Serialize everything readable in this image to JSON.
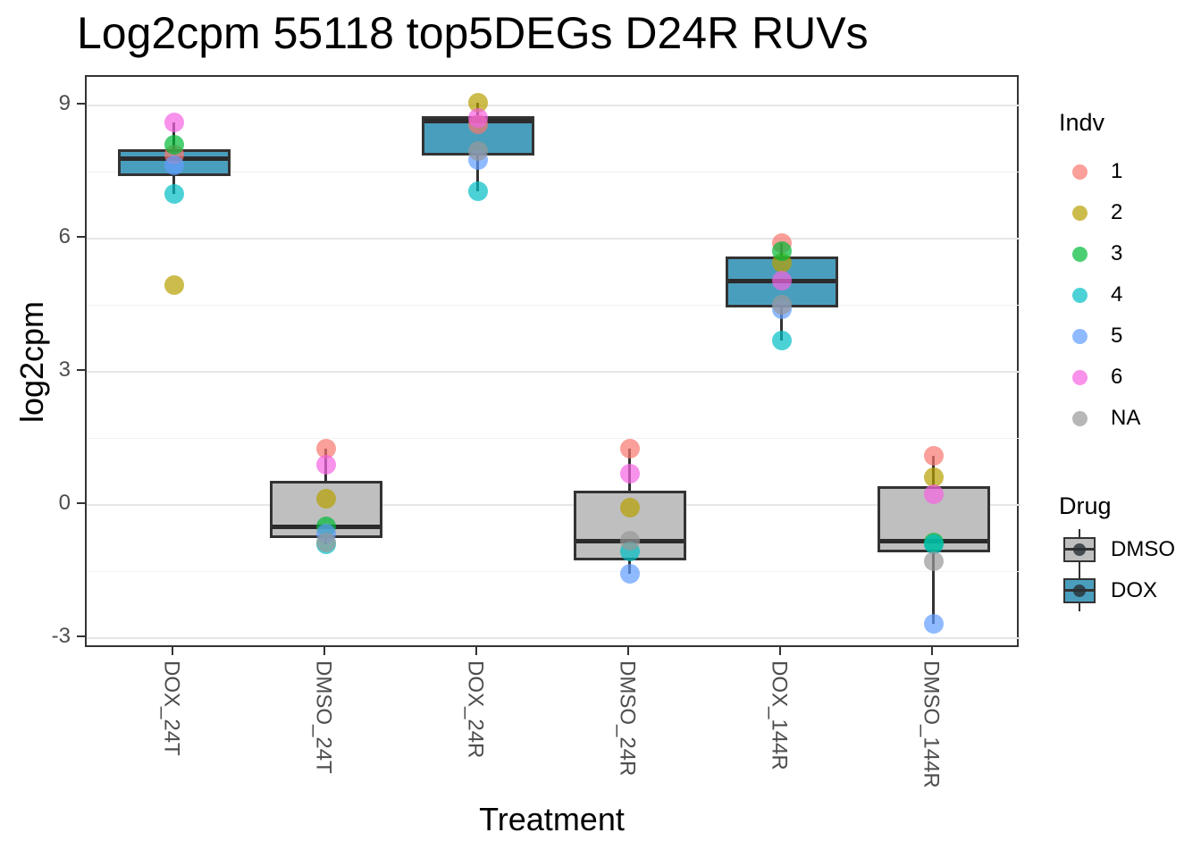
{
  "chart_data": {
    "type": "boxplot",
    "title": "Log2cpm 55118 top5DEGs D24R RUVs",
    "xlabel": "Treatment",
    "ylabel": "log2cpm",
    "ylim": [
      -3.24,
      9.64
    ],
    "yticks": [
      9,
      6,
      3,
      0,
      -3
    ],
    "yticks_minor": [
      7.5,
      4.5,
      1.5,
      -1.5
    ],
    "grid": "major and minor horizontal gridlines on white panel",
    "legend_position": "right",
    "categories": [
      "DOX_24T",
      "DMSO_24T",
      "DOX_24R",
      "DMSO_24R",
      "DOX_144R",
      "DMSO_144R"
    ],
    "boxes": [
      {
        "category": "DOX_24T",
        "drug": "DOX",
        "whisker_low": 7.0,
        "q1": 7.4,
        "median": 7.8,
        "q3": 8.0,
        "whisker_high": 8.62,
        "points": [
          {
            "indv": "1",
            "value": 7.88
          },
          {
            "indv": "2",
            "value": 4.95
          },
          {
            "indv": "3",
            "value": 8.12
          },
          {
            "indv": "4",
            "value": 7.0
          },
          {
            "indv": "5",
            "value": 7.65
          },
          {
            "indv": "6",
            "value": 8.62
          }
        ]
      },
      {
        "category": "DMSO_24T",
        "drug": "DMSO",
        "whisker_low": -0.88,
        "q1": -0.74,
        "median": -0.5,
        "q3": 0.54,
        "whisker_high": 1.27,
        "points": [
          {
            "indv": "1",
            "value": 1.27
          },
          {
            "indv": "2",
            "value": 0.14
          },
          {
            "indv": "3",
            "value": -0.48
          },
          {
            "indv": "4",
            "value": -0.88
          },
          {
            "indv": "5",
            "value": -0.64
          },
          {
            "indv": "6",
            "value": 0.9
          },
          {
            "indv": "NA",
            "value": -0.85
          }
        ]
      },
      {
        "category": "DOX_24R",
        "drug": "DOX",
        "whisker_low": 7.06,
        "q1": 7.87,
        "median": 8.65,
        "q3": 8.75,
        "whisker_high": 9.05,
        "points": [
          {
            "indv": "1",
            "value": 8.57
          },
          {
            "indv": "2",
            "value": 9.05
          },
          {
            "indv": "4",
            "value": 7.06
          },
          {
            "indv": "5",
            "value": 7.77
          },
          {
            "indv": "6",
            "value": 8.72
          },
          {
            "indv": "NA",
            "value": 7.97
          }
        ]
      },
      {
        "category": "DMSO_24R",
        "drug": "DMSO",
        "whisker_low": -1.55,
        "q1": -1.25,
        "median": -0.82,
        "q3": 0.32,
        "whisker_high": 1.27,
        "points": [
          {
            "indv": "1",
            "value": 1.27
          },
          {
            "indv": "2",
            "value": -0.06
          },
          {
            "indv": "4",
            "value": -1.05
          },
          {
            "indv": "5",
            "value": -1.55
          },
          {
            "indv": "6",
            "value": 0.7
          },
          {
            "indv": "NA",
            "value": -0.8
          }
        ]
      },
      {
        "category": "DOX_144R",
        "drug": "DOX",
        "whisker_low": 3.7,
        "q1": 4.45,
        "median": 5.05,
        "q3": 5.6,
        "whisker_high": 5.9,
        "points": [
          {
            "indv": "1",
            "value": 5.9
          },
          {
            "indv": "2",
            "value": 5.45
          },
          {
            "indv": "3",
            "value": 5.71
          },
          {
            "indv": "4",
            "value": 3.7
          },
          {
            "indv": "5",
            "value": 4.4
          },
          {
            "indv": "6",
            "value": 5.05
          },
          {
            "indv": "NA",
            "value": 4.5
          }
        ]
      },
      {
        "category": "DMSO_144R",
        "drug": "DMSO",
        "whisker_low": -2.67,
        "q1": -1.07,
        "median": -0.82,
        "q3": 0.42,
        "whisker_high": 1.1,
        "points": [
          {
            "indv": "1",
            "value": 1.1
          },
          {
            "indv": "2",
            "value": 0.62
          },
          {
            "indv": "3",
            "value": -0.85
          },
          {
            "indv": "4",
            "value": -0.88
          },
          {
            "indv": "5",
            "value": -2.67
          },
          {
            "indv": "6",
            "value": 0.24
          },
          {
            "indv": "NA",
            "value": -1.27
          }
        ]
      }
    ]
  },
  "colors": {
    "drug_fill": {
      "DMSO": "#BFBFBF",
      "DOX": "#4A9EBD"
    },
    "indv_point": {
      "1": "rgba(248,118,109,0.7)",
      "2": "rgba(183,159,0,0.7)",
      "3": "rgba(0,186,56,0.7)",
      "4": "rgba(0,191,196,0.7)",
      "5": "rgba(97,156,255,0.7)",
      "6": "rgba(245,100,226,0.7)",
      "NA": "rgba(153,153,153,0.7)"
    },
    "box_stroke": "#333333",
    "grid_major": "#E6E6E6",
    "grid_minor": "#F1F1F1",
    "tick_text": "#4D4D4D"
  },
  "legend": {
    "indv": {
      "title": "Indv",
      "items": [
        {
          "label": "1",
          "color": "rgba(248,118,109,0.7)"
        },
        {
          "label": "2",
          "color": "rgba(183,159,0,0.7)"
        },
        {
          "label": "3",
          "color": "rgba(0,186,56,0.7)"
        },
        {
          "label": "4",
          "color": "rgba(0,191,196,0.7)"
        },
        {
          "label": "5",
          "color": "rgba(97,156,255,0.7)"
        },
        {
          "label": "6",
          "color": "rgba(245,100,226,0.7)"
        },
        {
          "label": "NA",
          "color": "rgba(153,153,153,0.7)"
        }
      ]
    },
    "drug": {
      "title": "Drug",
      "items": [
        {
          "label": "DMSO",
          "fill": "#BFBFBF"
        },
        {
          "label": "DOX",
          "fill": "#4A9EBD"
        }
      ]
    }
  }
}
